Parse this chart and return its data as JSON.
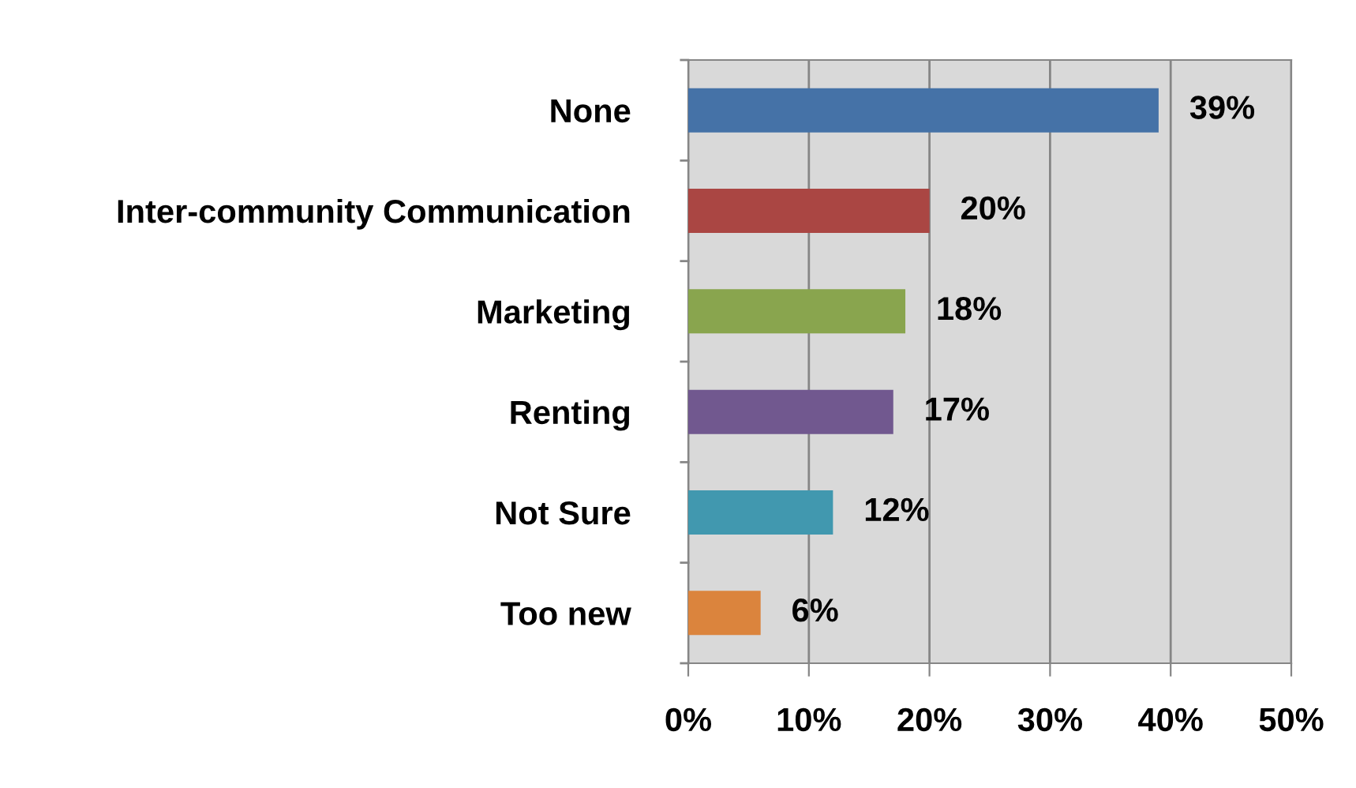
{
  "chart_data": {
    "type": "bar",
    "orientation": "horizontal",
    "categories": [
      "None",
      "Inter-community Communication",
      "Marketing",
      "Renting",
      "Not Sure",
      "Too new"
    ],
    "values": [
      39,
      20,
      18,
      17,
      12,
      6
    ],
    "colors": [
      "#4572a7",
      "#aa4643",
      "#89a54e",
      "#71588f",
      "#4198af",
      "#db843d"
    ],
    "value_labels": [
      "39%",
      "20%",
      "18%",
      "17%",
      "12%",
      "6%"
    ],
    "xlim": [
      0,
      50
    ],
    "xticks": [
      {
        "value": 0,
        "label": "0%"
      },
      {
        "value": 10,
        "label": "10%"
      },
      {
        "value": 20,
        "label": "20%"
      },
      {
        "value": 30,
        "label": "30%"
      },
      {
        "value": 40,
        "label": "40%"
      },
      {
        "value": 50,
        "label": "50%"
      }
    ],
    "grid": "x",
    "legend": false
  }
}
